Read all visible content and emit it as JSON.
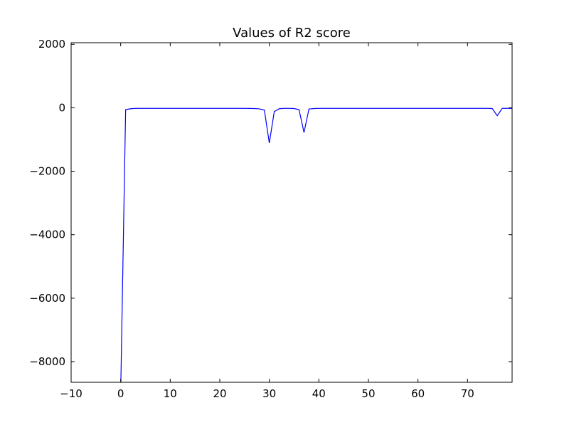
{
  "chart_data": {
    "type": "line",
    "title": "Values of R2 score",
    "xlabel": "",
    "ylabel": "",
    "xlim": [
      -10,
      79
    ],
    "ylim": [
      -8650,
      2050
    ],
    "xticks": [
      -10,
      0,
      10,
      20,
      30,
      40,
      50,
      60,
      70
    ],
    "yticks": [
      2000,
      0,
      -2000,
      -4000,
      -6000,
      -8000
    ],
    "grid": false,
    "legend": "none",
    "line_color": "#0000ff",
    "series": [
      {
        "x": [
          0,
          1,
          2,
          3,
          5,
          10,
          15,
          20,
          25,
          27,
          28,
          29,
          30,
          31,
          32,
          33,
          34,
          35,
          36,
          37,
          38,
          39,
          40,
          45,
          50,
          55,
          60,
          65,
          70,
          74,
          75,
          76,
          77,
          78,
          79
        ],
        "values": [
          -9000,
          -60,
          -30,
          -20,
          -20,
          -20,
          -20,
          -20,
          -20,
          -25,
          -35,
          -70,
          -1110,
          -120,
          -30,
          -20,
          -20,
          -25,
          -60,
          -780,
          -40,
          -25,
          -20,
          -20,
          -20,
          -20,
          -20,
          -20,
          -20,
          -20,
          -25,
          -250,
          -20,
          -20,
          -20
        ]
      }
    ]
  }
}
